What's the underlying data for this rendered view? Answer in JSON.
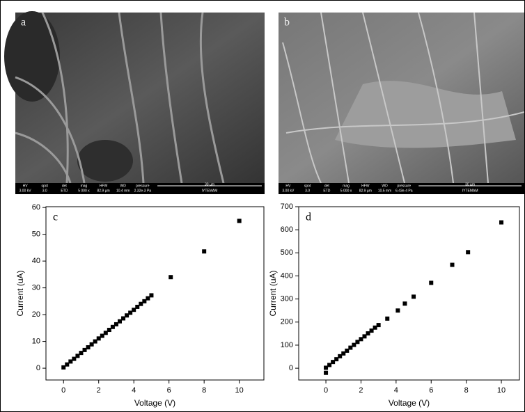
{
  "panels": [
    {
      "label": "a",
      "info_headers": [
        "HV",
        "spot",
        "det",
        "mag",
        "HFW",
        "WD",
        "pressure"
      ],
      "info_values": [
        "3.00 kV",
        "3.0",
        "ETD",
        "5 000 x",
        "82.9 µm",
        "10.4 mm",
        "2.32e-3 Pa"
      ],
      "scale": "30 µm",
      "lab": "IYTEMAM"
    },
    {
      "label": "b",
      "info_headers": [
        "HV",
        "spot",
        "det",
        "mag",
        "HFW",
        "WD",
        "pressure"
      ],
      "info_values": [
        "3.00 kV",
        "3.0",
        "ETD",
        "5 000 x",
        "82.9 µm",
        "10.5 mm",
        "6.43e-4 Pa"
      ],
      "scale": "30 µm",
      "lab": "IYTEMAM"
    }
  ],
  "chart_data": [
    {
      "type": "scatter",
      "title": "c",
      "x_label": "Voltage (V)",
      "y_label": "Current (uA)",
      "color": "#000000",
      "x": [
        0,
        0.2,
        0.4,
        0.6,
        0.8,
        1.0,
        1.2,
        1.4,
        1.6,
        1.8,
        2.0,
        2.2,
        2.4,
        2.6,
        2.8,
        3.0,
        3.2,
        3.4,
        3.6,
        3.8,
        4.0,
        4.2,
        4.4,
        4.6,
        4.8,
        5.0,
        6.1,
        8,
        10
      ],
      "values": [
        0.3,
        1.4,
        2.5,
        3.5,
        4.6,
        5.7,
        6.8,
        7.8,
        8.9,
        10.0,
        11.1,
        12.1,
        13.2,
        14.3,
        15.4,
        16.4,
        17.5,
        18.6,
        19.7,
        20.7,
        21.8,
        22.9,
        24.0,
        25.0,
        26.1,
        27.2,
        34,
        43.6,
        55
      ],
      "xlim": [
        -1,
        11.4
      ],
      "ylim": [
        -4.4,
        60.3
      ],
      "xticks": [
        0,
        2,
        4,
        6,
        8,
        10
      ],
      "yticks": [
        0,
        10,
        20,
        30,
        40,
        50,
        60
      ]
    },
    {
      "type": "scatter",
      "title": "d",
      "x_label": "Voltage (V)",
      "y_label": "Current (uA)",
      "color": "#000000",
      "x": [
        0,
        0,
        0.2,
        0.4,
        0.6,
        0.8,
        1.0,
        1.2,
        1.4,
        1.6,
        1.8,
        2.0,
        2.2,
        2.4,
        2.6,
        2.8,
        3.0,
        3.5,
        4.1,
        4.5,
        5.0,
        6.0,
        7.2,
        8.1,
        10
      ],
      "values": [
        -20,
        2,
        14,
        27,
        39,
        52,
        64,
        76,
        89,
        101,
        114,
        126,
        138,
        151,
        163,
        176,
        187,
        215,
        250,
        280,
        310,
        370,
        448,
        503,
        632
      ],
      "xlim": [
        -1.55,
        11.03
      ],
      "ylim": [
        -51,
        700
      ],
      "xticks": [
        0,
        2,
        4,
        6,
        8,
        10
      ],
      "yticks": [
        0,
        100,
        200,
        300,
        400,
        500,
        600,
        700
      ]
    }
  ]
}
